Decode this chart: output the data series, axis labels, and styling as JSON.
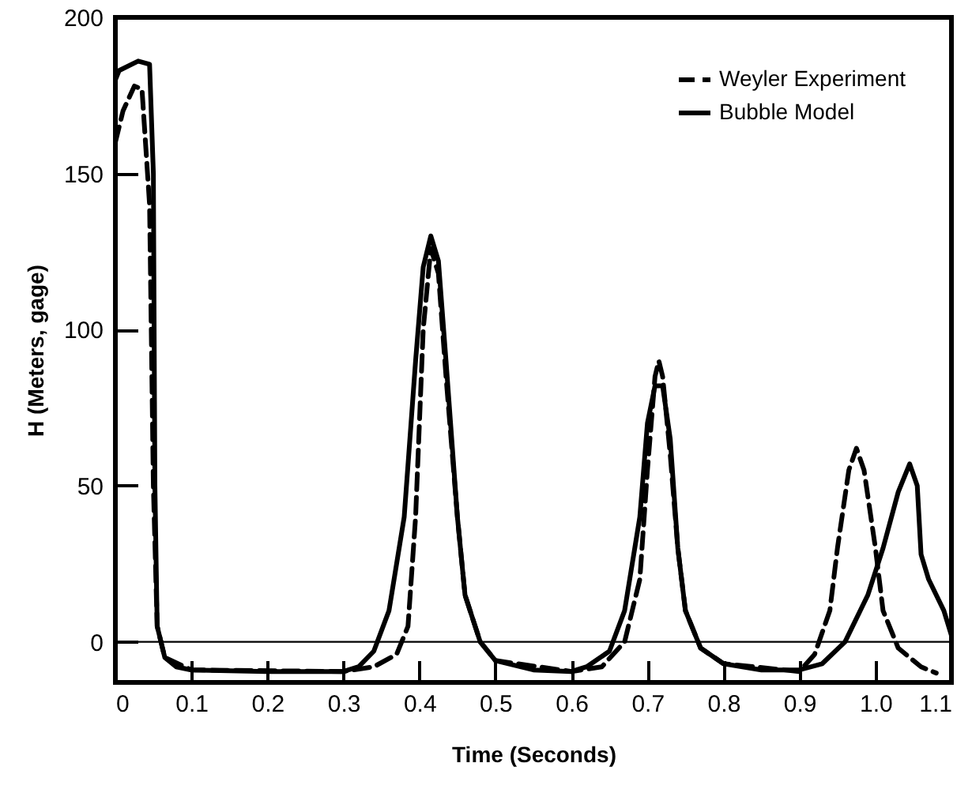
{
  "chart_data": {
    "type": "line",
    "xlabel": "Time (Seconds)",
    "ylabel": "H (Meters, gage)",
    "xlim": [
      0,
      1.1
    ],
    "ylim": [
      -13,
      200
    ],
    "xticks": [
      0,
      0.1,
      0.2,
      0.3,
      0.4,
      0.5,
      0.6,
      0.7,
      0.8,
      0.9,
      {
        "value": 1,
        "label": "1.0"
      },
      1.1
    ],
    "yticks": [
      0,
      50,
      100,
      150,
      200
    ],
    "grid": false,
    "legend": "top right",
    "marker": "none",
    "ref_lines": [
      {
        "axis": "y",
        "value": 0,
        "label": null
      }
    ],
    "series": [
      {
        "name": "Weyler Experiment",
        "color": "#000000",
        "line_style": "dashed",
        "x": [
          0,
          0.01,
          0.025,
          0.035,
          0.045,
          0.05,
          0.055,
          0.065,
          0.1,
          0.3,
          0.34,
          0.37,
          0.385,
          0.395,
          0.405,
          0.415,
          0.425,
          0.435,
          0.45,
          0.46,
          0.48,
          0.5,
          0.6,
          0.64,
          0.67,
          0.69,
          0.7,
          0.71,
          0.715,
          0.72,
          0.73,
          0.74,
          0.75,
          0.77,
          0.8,
          0.9,
          0.92,
          0.94,
          0.95,
          0.965,
          0.975,
          0.985,
          1.0,
          1.01,
          1.03,
          1.06,
          1.08
        ],
        "values": [
          160,
          170,
          178,
          177,
          140,
          50,
          5,
          -5,
          -9,
          -9.5,
          -8,
          -4,
          5,
          40,
          100,
          126,
          118,
          85,
          40,
          15,
          0,
          -6,
          -9.5,
          -8,
          0,
          20,
          55,
          85,
          90,
          85,
          60,
          30,
          10,
          -2,
          -7,
          -9.5,
          -4,
          10,
          30,
          55,
          62,
          55,
          30,
          10,
          -2,
          -8,
          -10
        ]
      },
      {
        "name": "Bubble Model",
        "color": "#000000",
        "line_style": "solid",
        "x": [
          0,
          0.005,
          0.03,
          0.045,
          0.05,
          0.052,
          0.055,
          0.065,
          0.08,
          0.1,
          0.2,
          0.3,
          0.32,
          0.34,
          0.36,
          0.38,
          0.395,
          0.405,
          0.415,
          0.425,
          0.435,
          0.45,
          0.46,
          0.48,
          0.5,
          0.55,
          0.6,
          0.62,
          0.65,
          0.67,
          0.69,
          0.7,
          0.71,
          0.72,
          0.73,
          0.74,
          0.75,
          0.77,
          0.8,
          0.85,
          0.9,
          0.93,
          0.96,
          0.99,
          1.01,
          1.03,
          1.045,
          1.055,
          1.06,
          1.07,
          1.09,
          1.1
        ],
        "values": [
          180,
          183,
          186,
          185,
          150,
          50,
          5,
          -5,
          -8,
          -9,
          -9.5,
          -9.5,
          -8,
          -3,
          10,
          40,
          90,
          120,
          130,
          122,
          90,
          40,
          15,
          0,
          -6,
          -9,
          -9.5,
          -8,
          -3,
          10,
          40,
          70,
          82,
          82,
          65,
          30,
          10,
          -2,
          -7,
          -9,
          -9,
          -7,
          0,
          15,
          30,
          48,
          57,
          50,
          28,
          20,
          10,
          2
        ]
      }
    ]
  }
}
